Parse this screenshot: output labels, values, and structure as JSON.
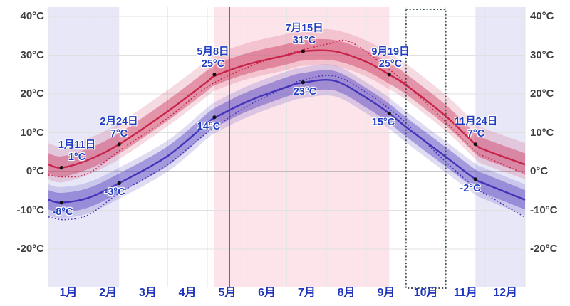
{
  "chart_data": {
    "type": "line",
    "x_axis": {
      "unit": "month",
      "tick_labels": [
        "1月",
        "2月",
        "3月",
        "4月",
        "5月",
        "6月",
        "7月",
        "8月",
        "9月",
        "10月",
        "11月",
        "12月"
      ]
    },
    "y_axis": {
      "unit": "°C",
      "tick_values": [
        40,
        30,
        20,
        10,
        0,
        -10,
        -20
      ],
      "tick_labels": [
        "40°C",
        "30°C",
        "20°C",
        "10°C",
        "0°C",
        "-10°C",
        "-20°C"
      ],
      "range": [
        -29,
        42
      ],
      "shown_on": [
        "left",
        "right"
      ]
    },
    "series": [
      {
        "name": "average-high",
        "line": "solid",
        "color": "#c8234a",
        "points": [
          [
            0,
            1.8
          ],
          [
            0.33,
            1.0
          ],
          [
            1,
            3.0
          ],
          [
            1.78,
            7.0
          ],
          [
            3,
            15.5
          ],
          [
            4,
            23.2
          ],
          [
            4.18,
            24.6
          ],
          [
            5,
            27.6
          ],
          [
            6,
            30.0
          ],
          [
            6.41,
            31.0
          ],
          [
            7.2,
            31.0
          ],
          [
            8,
            28.3
          ],
          [
            8.58,
            25.0
          ],
          [
            9,
            22.3
          ],
          [
            10,
            14.3
          ],
          [
            10.75,
            7.0
          ],
          [
            11,
            5.5
          ],
          [
            12,
            1.8
          ]
        ]
      },
      {
        "name": "average-high-dotted",
        "line": "dotted",
        "color": "#c8234a",
        "points": [
          [
            0,
            -0.9
          ],
          [
            0.4,
            -1.4
          ],
          [
            1,
            -0.5
          ],
          [
            1.78,
            5.3
          ],
          [
            3,
            13.8
          ],
          [
            4,
            21.8
          ],
          [
            5,
            26.8
          ],
          [
            6,
            30.2
          ],
          [
            7,
            32.8
          ],
          [
            7.6,
            33.4
          ],
          [
            8.58,
            26.3
          ],
          [
            9,
            22.6
          ],
          [
            10,
            12.8
          ],
          [
            10.75,
            5.2
          ],
          [
            11,
            3.8
          ],
          [
            12,
            -0.7
          ]
        ]
      },
      {
        "name": "average-low",
        "line": "solid",
        "color": "#4434b8",
        "points": [
          [
            0,
            -7.3
          ],
          [
            0.33,
            -8.0
          ],
          [
            1,
            -6.8
          ],
          [
            1.78,
            -3.0
          ],
          [
            3,
            4.0
          ],
          [
            4,
            12.5
          ],
          [
            4.18,
            13.8
          ],
          [
            5,
            18.0
          ],
          [
            6,
            21.8
          ],
          [
            6.41,
            22.9
          ],
          [
            7.2,
            23.4
          ],
          [
            8,
            19.0
          ],
          [
            8.58,
            15.0
          ],
          [
            9,
            11.5
          ],
          [
            10,
            3.8
          ],
          [
            10.75,
            -2.0
          ],
          [
            11,
            -3.2
          ],
          [
            12,
            -7.3
          ]
        ]
      },
      {
        "name": "average-low-dotted",
        "line": "dotted",
        "color": "#4434b8",
        "points": [
          [
            0,
            -11.7
          ],
          [
            0.4,
            -12.4
          ],
          [
            1,
            -11.2
          ],
          [
            1.78,
            -5.6
          ],
          [
            3,
            1.8
          ],
          [
            4,
            10.0
          ],
          [
            5,
            16.8
          ],
          [
            6,
            21.8
          ],
          [
            6.41,
            23.6
          ],
          [
            7.2,
            24.6
          ],
          [
            8,
            20.4
          ],
          [
            8.58,
            16.2
          ],
          [
            9,
            12.5
          ],
          [
            10,
            2.5
          ],
          [
            10.75,
            -4.2
          ],
          [
            11,
            -5.8
          ],
          [
            12,
            -11.8
          ]
        ]
      }
    ],
    "band_offsets": {
      "high": {
        "inner_above": 2.9,
        "inner_below": 2.4,
        "outer_above": 5.5,
        "outer_below": 3.8
      },
      "low": {
        "inner_above": 2.5,
        "inner_below": 2.5,
        "outer_above": 4.0,
        "outer_below": 4.0
      }
    },
    "band_fill": {
      "high_rgb": "200,35,75",
      "high_inner_alpha": 0.38,
      "high_outer_alpha": 0.17,
      "low_rgb": "80,62,190",
      "low_inner_alpha": 0.42,
      "low_outer_alpha": 0.19
    },
    "background_bands": [
      {
        "name": "cold-season-start",
        "from_month": 0,
        "to_month": 1.78,
        "color": "#e7e7f8"
      },
      {
        "name": "warm-season",
        "from_month": 4.18,
        "to_month": 8.58,
        "color": "#fce4ea"
      },
      {
        "name": "cold-season-end",
        "from_month": 10.75,
        "to_month": 12,
        "color": "#e7e7f8"
      }
    ],
    "highlight_box": {
      "from_month": 9,
      "to_month": 10,
      "border_color": "#41535b"
    },
    "marker_line": {
      "month": 4.56,
      "color": "#c53a5c"
    },
    "annotations": [
      {
        "series": "high",
        "date_label": "1月11日",
        "value_label": "1°C",
        "month": 0.33,
        "value": 1
      },
      {
        "series": "low",
        "value_label": "-8°C",
        "month": 0.33,
        "value": -8
      },
      {
        "series": "high",
        "date_label": "2月24日",
        "value_label": "7°C",
        "month": 1.78,
        "value": 7
      },
      {
        "series": "low",
        "value_label": "-3°C",
        "month": 1.78,
        "value": -3
      },
      {
        "series": "high",
        "date_label": "5月8日",
        "value_label": "25°C",
        "month": 4.18,
        "value": 25
      },
      {
        "series": "low",
        "value_label": "14°C",
        "month": 4.18,
        "value": 14
      },
      {
        "series": "high",
        "date_label": "7月15日",
        "value_label": "31°C",
        "month": 6.41,
        "value": 31
      },
      {
        "series": "low",
        "value_label": "23°C",
        "month": 6.41,
        "value": 23
      },
      {
        "series": "high",
        "date_label": "9月19日",
        "value_label": "25°C",
        "month": 8.58,
        "value": 25
      },
      {
        "series": "low",
        "value_label": "15°C",
        "month": 8.58,
        "value": 15
      },
      {
        "series": "high",
        "date_label": "11月24日",
        "value_label": "7°C",
        "month": 10.75,
        "value": 7
      },
      {
        "series": "low",
        "value_label": "-2°C",
        "month": 10.75,
        "value": -2
      }
    ],
    "grid": {
      "vertical_color": "#e5e5e5",
      "horizontal_color": "#e0e0e0",
      "zero_line_color": "#8f8f8f"
    },
    "text_colors": {
      "axis": "#3d3d3d",
      "months": "#1e33bb",
      "annotations": "#1e3dc2"
    },
    "dot_color": "#111111"
  }
}
